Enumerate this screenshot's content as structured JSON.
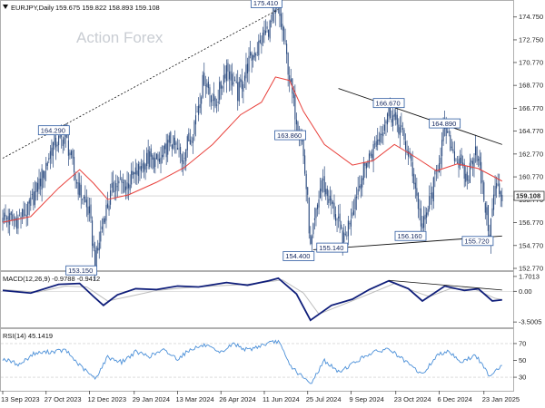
{
  "header": {
    "symbol": "EURJPY,Daily",
    "ohlc": "159.675 159.822 158.893 159.108",
    "watermark": "Action Forex"
  },
  "colors": {
    "candle": "#2b4b7f",
    "sma": "#e8413c",
    "macd": "#0f1e7a",
    "signal": "#bcbcbc",
    "rsi": "#4a8fd8",
    "trendline": "#111111",
    "callout_border": "#2d5aa0"
  },
  "chart_data": [
    {
      "type": "candlestick",
      "title": "EURJPY,Daily",
      "x_tick_labels": [
        "13 Sep 2023",
        "27 Oct 2023",
        "12 Dec 2023",
        "29 Jan 2024",
        "13 Mar 2024",
        "26 Apr 2024",
        "11 Jun 2024",
        "25 Jul 2024",
        "9 Sep 2024",
        "23 Oct 2024",
        "6 Dec 2024",
        "23 Jan 2025"
      ],
      "y_tick_labels": [
        "174.750",
        "172.750",
        "170.770",
        "168.770",
        "166.770",
        "164.770",
        "162.770",
        "160.770",
        "158.770",
        "156.770",
        "154.770",
        "152.770"
      ],
      "ylim": [
        152.77,
        175.6
      ],
      "last_price_label": "159.108",
      "close_path": [
        {
          "t": 0,
          "v": 157.3
        },
        {
          "t": 9,
          "v": 156.9
        },
        {
          "t": 18,
          "v": 157.8
        },
        {
          "t": 27,
          "v": 160.5
        },
        {
          "t": 36,
          "v": 163.6
        },
        {
          "t": 45,
          "v": 164.3
        },
        {
          "t": 53,
          "v": 160.2
        },
        {
          "t": 62,
          "v": 157.5
        },
        {
          "t": 66,
          "v": 153.15
        },
        {
          "t": 72,
          "v": 157.2
        },
        {
          "t": 80,
          "v": 160.2
        },
        {
          "t": 88,
          "v": 160.0
        },
        {
          "t": 96,
          "v": 161.2
        },
        {
          "t": 104,
          "v": 162.4
        },
        {
          "t": 112,
          "v": 162.0
        },
        {
          "t": 120,
          "v": 164.0
        },
        {
          "t": 128,
          "v": 162.4
        },
        {
          "t": 136,
          "v": 165.0
        },
        {
          "t": 144,
          "v": 169.5
        },
        {
          "t": 152,
          "v": 167.0
        },
        {
          "t": 160,
          "v": 170.5
        },
        {
          "t": 168,
          "v": 168.0
        },
        {
          "t": 176,
          "v": 170.8
        },
        {
          "t": 184,
          "v": 172.5
        },
        {
          "t": 192,
          "v": 174.2
        },
        {
          "t": 197,
          "v": 175.41
        },
        {
          "t": 202,
          "v": 172.0
        },
        {
          "t": 208,
          "v": 167.0
        },
        {
          "t": 214,
          "v": 163.86
        },
        {
          "t": 218,
          "v": 158.5
        },
        {
          "t": 220,
          "v": 154.4
        },
        {
          "t": 228,
          "v": 160.5
        },
        {
          "t": 236,
          "v": 158.0
        },
        {
          "t": 244,
          "v": 155.14
        },
        {
          "t": 252,
          "v": 159.0
        },
        {
          "t": 260,
          "v": 162.0
        },
        {
          "t": 268,
          "v": 164.0
        },
        {
          "t": 276,
          "v": 166.67
        },
        {
          "t": 284,
          "v": 165.0
        },
        {
          "t": 292,
          "v": 162.0
        },
        {
          "t": 300,
          "v": 156.16
        },
        {
          "t": 308,
          "v": 160.0
        },
        {
          "t": 316,
          "v": 164.89
        },
        {
          "t": 324,
          "v": 162.5
        },
        {
          "t": 332,
          "v": 160.5
        },
        {
          "t": 338,
          "v": 163.5
        },
        {
          "t": 344,
          "v": 159.0
        },
        {
          "t": 348,
          "v": 155.72
        },
        {
          "t": 352,
          "v": 160.0
        },
        {
          "t": 357,
          "v": 159.108
        }
      ],
      "sma_path": [
        {
          "t": 0,
          "v": 156.8
        },
        {
          "t": 20,
          "v": 157.3
        },
        {
          "t": 40,
          "v": 159.8
        },
        {
          "t": 55,
          "v": 161.4
        },
        {
          "t": 65,
          "v": 160.2
        },
        {
          "t": 75,
          "v": 158.8
        },
        {
          "t": 90,
          "v": 159.2
        },
        {
          "t": 110,
          "v": 160.3
        },
        {
          "t": 130,
          "v": 161.6
        },
        {
          "t": 150,
          "v": 163.6
        },
        {
          "t": 170,
          "v": 166.2
        },
        {
          "t": 185,
          "v": 167.3
        },
        {
          "t": 195,
          "v": 169.5
        },
        {
          "t": 205,
          "v": 169.2
        },
        {
          "t": 215,
          "v": 166.5
        },
        {
          "t": 230,
          "v": 163.6
        },
        {
          "t": 250,
          "v": 161.8
        },
        {
          "t": 265,
          "v": 162.2
        },
        {
          "t": 280,
          "v": 163.6
        },
        {
          "t": 295,
          "v": 162.5
        },
        {
          "t": 310,
          "v": 161.3
        },
        {
          "t": 325,
          "v": 161.9
        },
        {
          "t": 340,
          "v": 161.5
        },
        {
          "t": 357,
          "v": 160.4
        }
      ],
      "callouts": [
        {
          "text": "175.410",
          "t": 197,
          "v": 175.41
        },
        {
          "text": "164.290",
          "t": 45,
          "v": 164.29
        },
        {
          "text": "153.150",
          "t": 66,
          "v": 153.15
        },
        {
          "text": "163.860",
          "t": 214,
          "v": 163.86
        },
        {
          "text": "154.400",
          "t": 220,
          "v": 154.4
        },
        {
          "text": "155.140",
          "t": 244,
          "v": 155.14
        },
        {
          "text": "166.670",
          "t": 276,
          "v": 166.67
        },
        {
          "text": "164.890",
          "t": 316,
          "v": 164.89
        },
        {
          "text": "156.160",
          "t": 300,
          "v": 156.16
        },
        {
          "text": "155.720",
          "t": 348,
          "v": 155.72
        }
      ]
    },
    {
      "type": "line",
      "title": "MACD(12,26,9) -0.9788 -0.9412",
      "y_tick_labels": [
        "1.7013",
        "0.00",
        "-3.5005"
      ],
      "ylim": [
        -3.9,
        2.0
      ],
      "series": [
        {
          "values": [
            {
              "t": 0,
              "v": 0.1
            },
            {
              "t": 20,
              "v": -0.2
            },
            {
              "t": 40,
              "v": 0.8
            },
            {
              "t": 55,
              "v": 0.9
            },
            {
              "t": 65,
              "v": -0.6
            },
            {
              "t": 72,
              "v": -1.6
            },
            {
              "t": 82,
              "v": -0.4
            },
            {
              "t": 95,
              "v": 0.3
            },
            {
              "t": 110,
              "v": 0.2
            },
            {
              "t": 125,
              "v": 0.6
            },
            {
              "t": 140,
              "v": 0.5
            },
            {
              "t": 160,
              "v": 1.0
            },
            {
              "t": 175,
              "v": 0.7
            },
            {
              "t": 190,
              "v": 1.2
            },
            {
              "t": 197,
              "v": 1.5
            },
            {
              "t": 210,
              "v": -0.3
            },
            {
              "t": 220,
              "v": -3.3
            },
            {
              "t": 235,
              "v": -1.6
            },
            {
              "t": 250,
              "v": -0.9
            },
            {
              "t": 262,
              "v": 0.2
            },
            {
              "t": 276,
              "v": 1.2
            },
            {
              "t": 290,
              "v": 0.3
            },
            {
              "t": 300,
              "v": -1.1
            },
            {
              "t": 316,
              "v": 0.6
            },
            {
              "t": 330,
              "v": 0.1
            },
            {
              "t": 340,
              "v": 0.3
            },
            {
              "t": 350,
              "v": -1.1
            },
            {
              "t": 357,
              "v": -0.98
            }
          ]
        },
        {
          "values": [
            {
              "t": 0,
              "v": 0.2
            },
            {
              "t": 25,
              "v": -0.1
            },
            {
              "t": 45,
              "v": 0.6
            },
            {
              "t": 60,
              "v": 0.5
            },
            {
              "t": 75,
              "v": -1.1
            },
            {
              "t": 90,
              "v": -0.6
            },
            {
              "t": 110,
              "v": 0.1
            },
            {
              "t": 130,
              "v": 0.4
            },
            {
              "t": 150,
              "v": 0.6
            },
            {
              "t": 175,
              "v": 0.8
            },
            {
              "t": 200,
              "v": 1.3
            },
            {
              "t": 215,
              "v": -0.2
            },
            {
              "t": 226,
              "v": -2.6
            },
            {
              "t": 245,
              "v": -1.4
            },
            {
              "t": 265,
              "v": -0.1
            },
            {
              "t": 280,
              "v": 0.9
            },
            {
              "t": 296,
              "v": -0.1
            },
            {
              "t": 305,
              "v": -0.6
            },
            {
              "t": 320,
              "v": 0.3
            },
            {
              "t": 338,
              "v": 0.2
            },
            {
              "t": 352,
              "v": -0.8
            },
            {
              "t": 357,
              "v": -0.94
            }
          ]
        }
      ]
    },
    {
      "type": "line",
      "title": "RSI(14) 45.1419",
      "y_tick_labels": [
        "70",
        "50",
        "30"
      ],
      "ylim": [
        15,
        85
      ],
      "series": [
        {
          "values": [
            {
              "t": 0,
              "v": 52
            },
            {
              "t": 12,
              "v": 45
            },
            {
              "t": 22,
              "v": 58
            },
            {
              "t": 32,
              "v": 60
            },
            {
              "t": 45,
              "v": 62
            },
            {
              "t": 55,
              "v": 44
            },
            {
              "t": 66,
              "v": 28
            },
            {
              "t": 75,
              "v": 54
            },
            {
              "t": 85,
              "v": 48
            },
            {
              "t": 95,
              "v": 60
            },
            {
              "t": 105,
              "v": 55
            },
            {
              "t": 115,
              "v": 62
            },
            {
              "t": 125,
              "v": 52
            },
            {
              "t": 135,
              "v": 64
            },
            {
              "t": 145,
              "v": 68
            },
            {
              "t": 155,
              "v": 58
            },
            {
              "t": 165,
              "v": 70
            },
            {
              "t": 175,
              "v": 62
            },
            {
              "t": 185,
              "v": 68
            },
            {
              "t": 197,
              "v": 73
            },
            {
              "t": 205,
              "v": 45
            },
            {
              "t": 213,
              "v": 32
            },
            {
              "t": 220,
              "v": 22
            },
            {
              "t": 230,
              "v": 50
            },
            {
              "t": 240,
              "v": 36
            },
            {
              "t": 250,
              "v": 46
            },
            {
              "t": 262,
              "v": 58
            },
            {
              "t": 276,
              "v": 64
            },
            {
              "t": 285,
              "v": 52
            },
            {
              "t": 300,
              "v": 33
            },
            {
              "t": 310,
              "v": 55
            },
            {
              "t": 318,
              "v": 62
            },
            {
              "t": 328,
              "v": 48
            },
            {
              "t": 338,
              "v": 56
            },
            {
              "t": 348,
              "v": 32
            },
            {
              "t": 357,
              "v": 45
            }
          ]
        }
      ]
    }
  ]
}
